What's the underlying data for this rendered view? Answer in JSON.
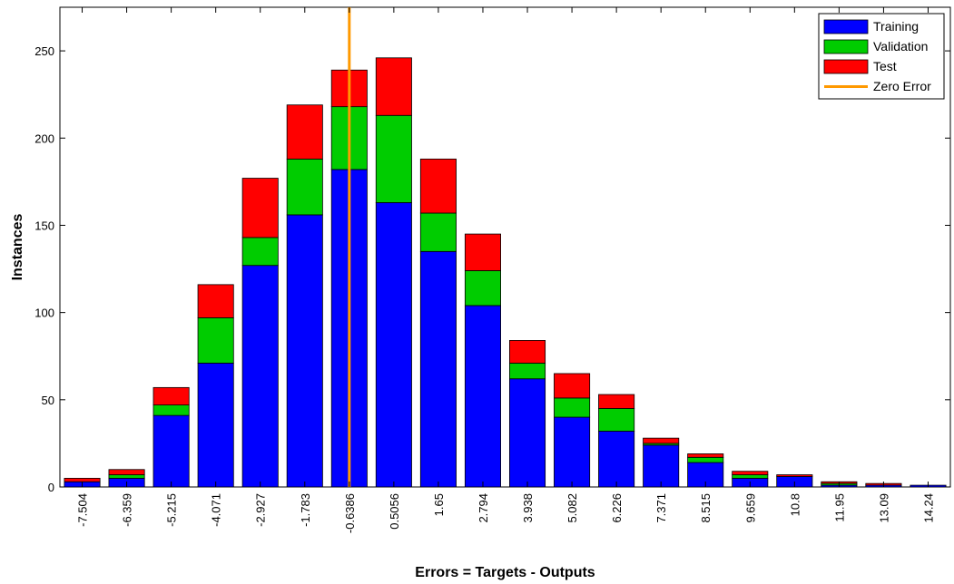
{
  "chart_data": {
    "type": "bar",
    "stacked": true,
    "title": "",
    "xlabel": "Errors = Targets - Outputs",
    "ylabel": "Instances",
    "categories": [
      "-7.504",
      "-6.359",
      "-5.215",
      "-4.071",
      "-2.927",
      "-1.783",
      "-0.6386",
      "0.5056",
      "1.65",
      "2.794",
      "3.938",
      "5.082",
      "6.226",
      "7.371",
      "8.515",
      "9.659",
      "10.8",
      "11.95",
      "13.09",
      "14.24"
    ],
    "series": [
      {
        "name": "Training",
        "color": "#0000ff",
        "values": [
          3,
          5,
          41,
          71,
          127,
          156,
          182,
          163,
          135,
          104,
          62,
          40,
          32,
          24,
          14,
          5,
          6,
          1,
          1,
          1
        ]
      },
      {
        "name": "Validation",
        "color": "#00cc00",
        "values": [
          0,
          2,
          6,
          26,
          16,
          32,
          36,
          50,
          22,
          20,
          9,
          11,
          13,
          1,
          3,
          2,
          0,
          1,
          0,
          0
        ]
      },
      {
        "name": "Test",
        "color": "#ff0000",
        "values": [
          2,
          3,
          10,
          19,
          34,
          31,
          21,
          33,
          31,
          21,
          13,
          14,
          8,
          3,
          2,
          2,
          1,
          1,
          1,
          0
        ]
      }
    ],
    "reference_line": {
      "name": "Zero Error",
      "color": "#ff9900",
      "category_position": 6.5
    },
    "ylim": [
      0,
      275
    ],
    "yticks": [
      0,
      50,
      100,
      150,
      200,
      250
    ],
    "grid": false,
    "legend_position": "top-right"
  }
}
